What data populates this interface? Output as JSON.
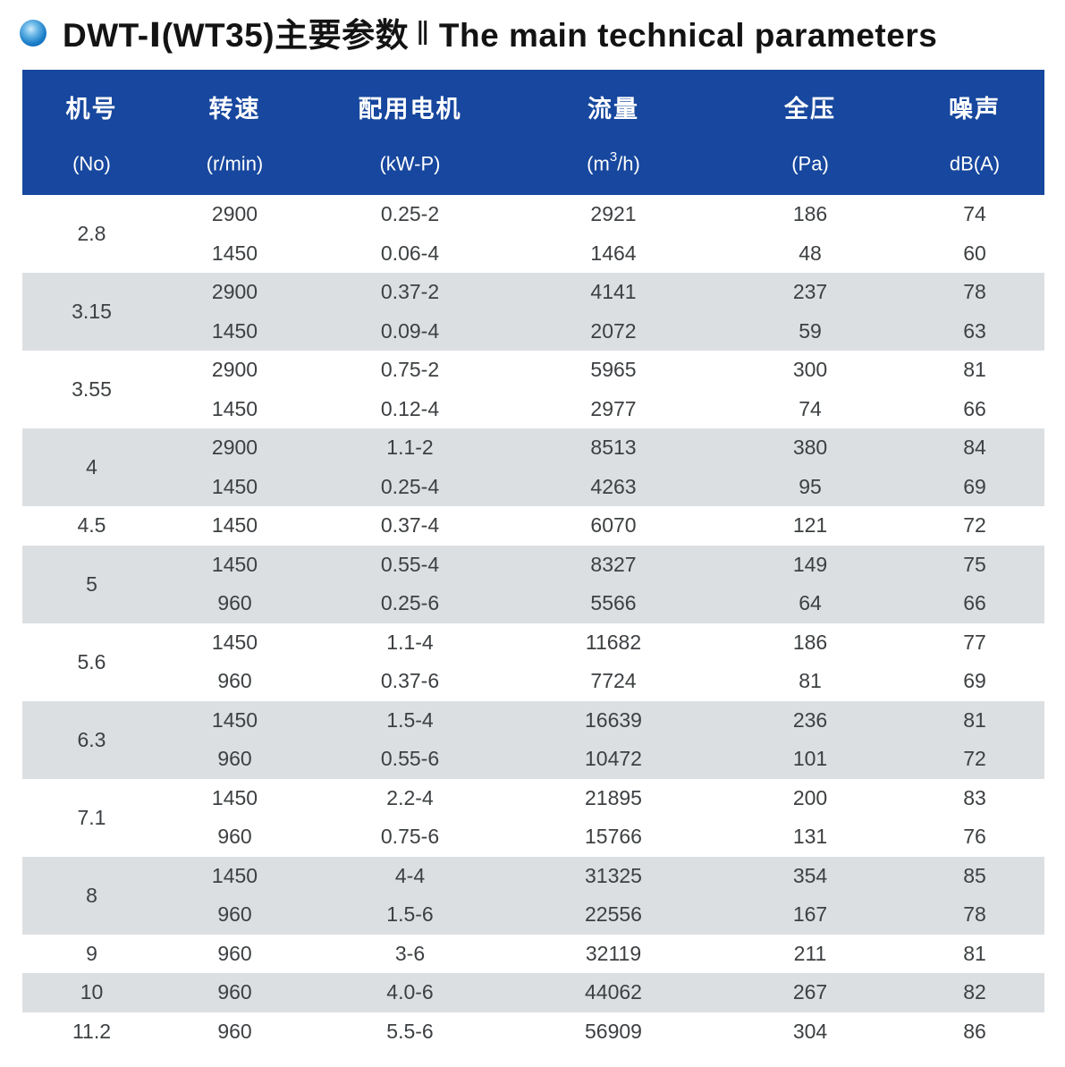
{
  "title": {
    "zh": "DWT-Ⅰ(WT35)主要参数",
    "divider": "‖",
    "en": "The main technical parameters"
  },
  "colors": {
    "header_bg": "#17479e",
    "alt_row_bg": "#dcdfe2",
    "row_bg": "#ffffff",
    "cell_text": "#3d4042",
    "bullet_blue": "#1b7ec9"
  },
  "table": {
    "columns": [
      {
        "name_zh": "机号",
        "unit_pre": "(No)",
        "unit_sup": "",
        "unit_post": ""
      },
      {
        "name_zh": "转速",
        "unit_pre": "(r/min)",
        "unit_sup": "",
        "unit_post": ""
      },
      {
        "name_zh": "配用电机",
        "unit_pre": "(kW-P)",
        "unit_sup": "",
        "unit_post": ""
      },
      {
        "name_zh": "流量",
        "unit_pre": "(m",
        "unit_sup": "3",
        "unit_post": "/h)"
      },
      {
        "name_zh": "全压",
        "unit_pre": "(Pa)",
        "unit_sup": "",
        "unit_post": ""
      },
      {
        "name_zh": "噪声",
        "unit_pre": "dB(A)",
        "unit_sup": "",
        "unit_post": ""
      }
    ],
    "groups": [
      {
        "no": "2.8",
        "rows": [
          [
            "2900",
            "0.25-2",
            "2921",
            "186",
            "74"
          ],
          [
            "1450",
            "0.06-4",
            "1464",
            "48",
            "60"
          ]
        ]
      },
      {
        "no": "3.15",
        "rows": [
          [
            "2900",
            "0.37-2",
            "4141",
            "237",
            "78"
          ],
          [
            "1450",
            "0.09-4",
            "2072",
            "59",
            "63"
          ]
        ]
      },
      {
        "no": "3.55",
        "rows": [
          [
            "2900",
            "0.75-2",
            "5965",
            "300",
            "81"
          ],
          [
            "1450",
            "0.12-4",
            "2977",
            "74",
            "66"
          ]
        ]
      },
      {
        "no": "4",
        "rows": [
          [
            "2900",
            "1.1-2",
            "8513",
            "380",
            "84"
          ],
          [
            "1450",
            "0.25-4",
            "4263",
            "95",
            "69"
          ]
        ]
      },
      {
        "no": "4.5",
        "rows": [
          [
            "1450",
            "0.37-4",
            "6070",
            "121",
            "72"
          ]
        ]
      },
      {
        "no": "5",
        "rows": [
          [
            "1450",
            "0.55-4",
            "8327",
            "149",
            "75"
          ],
          [
            "960",
            "0.25-6",
            "5566",
            "64",
            "66"
          ]
        ]
      },
      {
        "no": "5.6",
        "rows": [
          [
            "1450",
            "1.1-4",
            "11682",
            "186",
            "77"
          ],
          [
            "960",
            "0.37-6",
            "7724",
            "81",
            "69"
          ]
        ]
      },
      {
        "no": "6.3",
        "rows": [
          [
            "1450",
            "1.5-4",
            "16639",
            "236",
            "81"
          ],
          [
            "960",
            "0.55-6",
            "10472",
            "101",
            "72"
          ]
        ]
      },
      {
        "no": "7.1",
        "rows": [
          [
            "1450",
            "2.2-4",
            "21895",
            "200",
            "83"
          ],
          [
            "960",
            "0.75-6",
            "15766",
            "131",
            "76"
          ]
        ]
      },
      {
        "no": "8",
        "rows": [
          [
            "1450",
            "4-4",
            "31325",
            "354",
            "85"
          ],
          [
            "960",
            "1.5-6",
            "22556",
            "167",
            "78"
          ]
        ]
      },
      {
        "no": "9",
        "rows": [
          [
            "960",
            "3-6",
            "32119",
            "211",
            "81"
          ]
        ]
      },
      {
        "no": "10",
        "rows": [
          [
            "960",
            "4.0-6",
            "44062",
            "267",
            "82"
          ]
        ]
      },
      {
        "no": "11.2",
        "rows": [
          [
            "960",
            "5.5-6",
            "56909",
            "304",
            "86"
          ]
        ]
      }
    ]
  }
}
